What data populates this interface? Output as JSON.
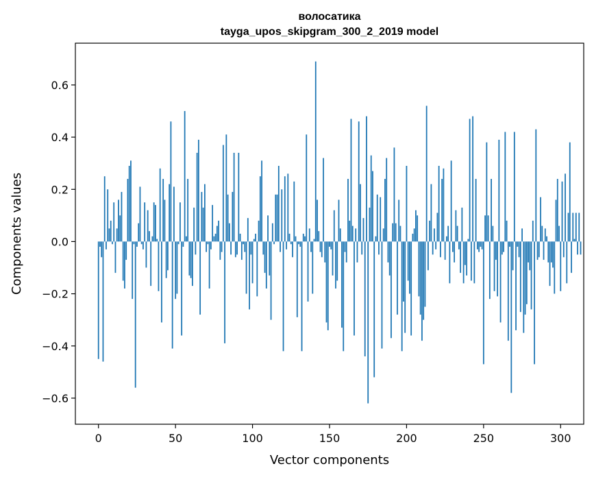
{
  "chart_data": {
    "type": "bar",
    "title_lines": [
      "волосатика",
      "tayga_upos_skipgram_300_2_2019 model"
    ],
    "xlabel": "Vector components",
    "ylabel": "Components values",
    "xlim": [
      -15,
      315
    ],
    "ylim": [
      -0.7,
      0.76
    ],
    "xticks": [
      0,
      50,
      100,
      150,
      200,
      250,
      300
    ],
    "yticks": [
      -0.6,
      -0.4,
      -0.2,
      0.0,
      0.2,
      0.4,
      0.6
    ],
    "ytick_labels": [
      "−0.6",
      "−0.4",
      "−0.2",
      "0.0",
      "0.2",
      "0.4",
      "0.6"
    ],
    "bar_color": "#1f77b4",
    "grid": false,
    "legend": "none",
    "values": [
      -0.45,
      -0.02,
      -0.06,
      -0.46,
      0.25,
      -0.03,
      0.2,
      0.05,
      0.08,
      -0.01,
      0.15,
      -0.12,
      0.05,
      0.16,
      0.1,
      0.19,
      -0.15,
      -0.18,
      -0.07,
      0.24,
      0.29,
      0.31,
      -0.22,
      -0.01,
      -0.56,
      -0.02,
      0.07,
      0.21,
      -0.01,
      -0.03,
      0.15,
      -0.1,
      0.12,
      0.04,
      -0.17,
      0.02,
      0.15,
      0.14,
      0.01,
      -0.19,
      0.28,
      -0.31,
      0.24,
      0.16,
      -0.14,
      -0.11,
      0.22,
      0.46,
      -0.41,
      0.21,
      -0.22,
      -0.2,
      -0.01,
      0.15,
      -0.36,
      -0.02,
      0.5,
      0.02,
      0.24,
      -0.13,
      -0.14,
      -0.17,
      0.13,
      -0.05,
      0.34,
      0.39,
      -0.28,
      0.19,
      0.13,
      0.22,
      -0.04,
      -0.01,
      -0.18,
      -0.03,
      0.14,
      0.02,
      0.03,
      0.06,
      0.08,
      -0.07,
      -0.04,
      0.37,
      -0.39,
      0.41,
      0.18,
      0.07,
      -0.05,
      0.19,
      0.34,
      -0.06,
      -0.05,
      0.34,
      0.03,
      -0.07,
      -0.01,
      -0.04,
      -0.2,
      0.09,
      -0.26,
      -0.05,
      -0.16,
      0.01,
      0.03,
      -0.21,
      0.08,
      0.25,
      0.31,
      -0.05,
      -0.12,
      -0.18,
      0.1,
      -0.13,
      -0.3,
      0.07,
      -0.01,
      0.18,
      0.18,
      0.29,
      -0.04,
      0.2,
      -0.42,
      0.25,
      -0.03,
      0.26,
      0.03,
      -0.01,
      -0.06,
      0.23,
      0.02,
      -0.29,
      -0.01,
      -0.02,
      -0.42,
      0.03,
      0.02,
      0.41,
      -0.23,
      0.05,
      -0.04,
      -0.2,
      0.01,
      0.69,
      0.16,
      0.04,
      -0.04,
      -0.06,
      0.32,
      -0.08,
      -0.31,
      -0.34,
      -0.02,
      -0.03,
      -0.13,
      0.12,
      -0.18,
      -0.15,
      0.16,
      0.05,
      -0.33,
      -0.42,
      -0.04,
      -0.08,
      0.24,
      0.08,
      0.47,
      0.06,
      -0.36,
      0.05,
      -0.08,
      0.46,
      0.22,
      -0.05,
      0.09,
      -0.44,
      0.48,
      -0.62,
      0.13,
      0.33,
      0.27,
      -0.52,
      0.02,
      0.18,
      -0.05,
      0.17,
      -0.41,
      0.05,
      0.24,
      0.32,
      -0.08,
      -0.13,
      -0.37,
      0.07,
      0.36,
      0.07,
      -0.28,
      0.16,
      0.06,
      -0.42,
      -0.23,
      -0.35,
      0.29,
      -0.15,
      -0.2,
      -0.36,
      0.03,
      0.05,
      0.12,
      0.1,
      -0.21,
      -0.28,
      -0.38,
      -0.3,
      -0.25,
      0.52,
      -0.11,
      0.08,
      0.22,
      -0.05,
      0.05,
      -0.03,
      0.11,
      0.29,
      -0.06,
      0.24,
      0.28,
      -0.07,
      0.02,
      0.06,
      -0.16,
      0.31,
      -0.04,
      -0.08,
      0.12,
      0.06,
      -0.03,
      -0.12,
      0.13,
      -0.16,
      -0.09,
      -0.13,
      0.01,
      0.47,
      -0.15,
      0.48,
      -0.16,
      0.24,
      -0.03,
      -0.04,
      -0.02,
      -0.03,
      -0.47,
      0.1,
      0.38,
      0.1,
      -0.22,
      0.24,
      0.06,
      -0.19,
      -0.07,
      -0.21,
      0.39,
      -0.31,
      -0.05,
      -0.04,
      0.42,
      0.08,
      -0.38,
      -0.02,
      -0.58,
      -0.11,
      0.42,
      -0.34,
      -0.02,
      -0.06,
      -0.27,
      0.05,
      -0.35,
      -0.28,
      -0.24,
      -0.08,
      -0.11,
      -0.26,
      0.08,
      -0.47,
      0.43,
      -0.07,
      -0.06,
      0.17,
      0.06,
      -0.07,
      0.05,
      0.02,
      -0.08,
      -0.17,
      -0.08,
      -0.1,
      -0.2,
      0.16,
      0.24,
      0.06,
      -0.19,
      0.23,
      -0.06,
      0.26,
      -0.16,
      0.11,
      0.38,
      -0.12,
      0.11,
      0.01,
      0.11,
      -0.05,
      0.11,
      -0.05
    ]
  }
}
